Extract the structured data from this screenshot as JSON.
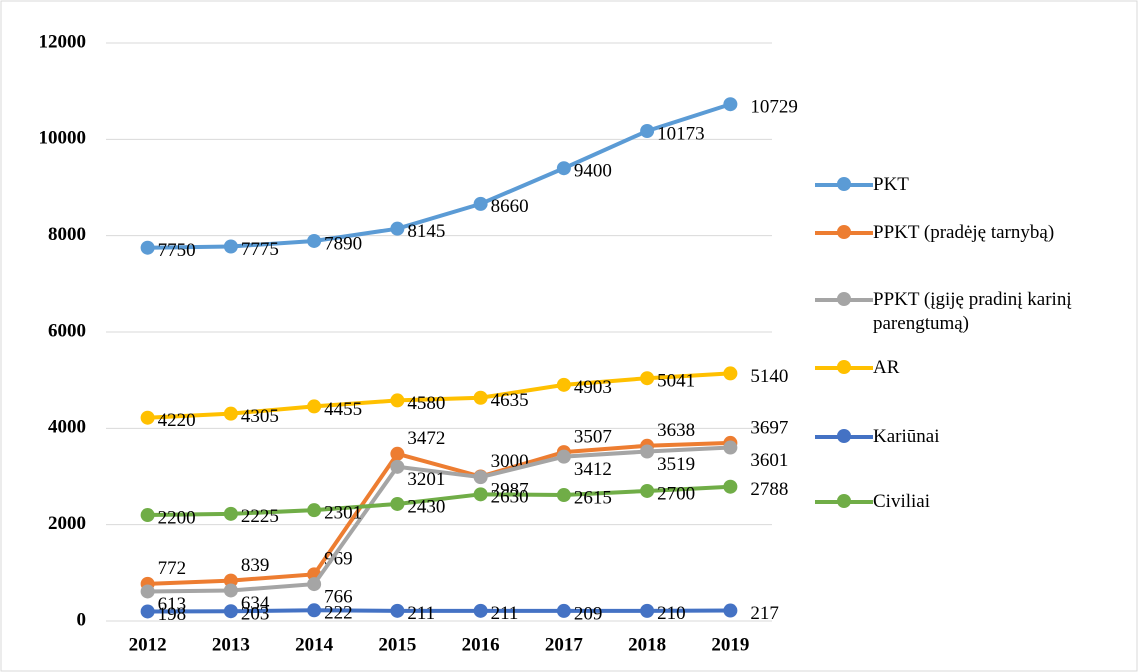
{
  "chart_data": {
    "type": "line",
    "categories": [
      "2012",
      "2013",
      "2014",
      "2015",
      "2016",
      "2017",
      "2018",
      "2019"
    ],
    "series": [
      {
        "name": "PKT",
        "color": "#5b9bd5",
        "values": [
          7750,
          7775,
          7890,
          8145,
          8660,
          9400,
          10173,
          10729
        ]
      },
      {
        "name": "PPKT (pradėję tarnybą)",
        "color": "#ed7d31",
        "values": [
          772,
          839,
          969,
          3472,
          3000,
          3507,
          3638,
          3697
        ]
      },
      {
        "name": "PPKT (įgiję pradinį karinį parengtumą)",
        "color": "#a5a5a5",
        "values": [
          613,
          634,
          766,
          3201,
          2987,
          3412,
          3519,
          3601
        ]
      },
      {
        "name": "AR",
        "color": "#ffc000",
        "values": [
          4220,
          4305,
          4455,
          4580,
          4635,
          4903,
          5041,
          5140
        ]
      },
      {
        "name": "Kariūnai",
        "color": "#4472c4",
        "values": [
          198,
          203,
          222,
          211,
          211,
          209,
          210,
          217
        ]
      },
      {
        "name": "Civiliai",
        "color": "#70ad47",
        "values": [
          2200,
          2225,
          2301,
          2430,
          2630,
          2615,
          2700,
          2788
        ]
      }
    ],
    "ylim": [
      0,
      12000
    ],
    "yticks": [
      0,
      2000,
      4000,
      6000,
      8000,
      10000,
      12000
    ],
    "grid": true,
    "legend": "right"
  }
}
